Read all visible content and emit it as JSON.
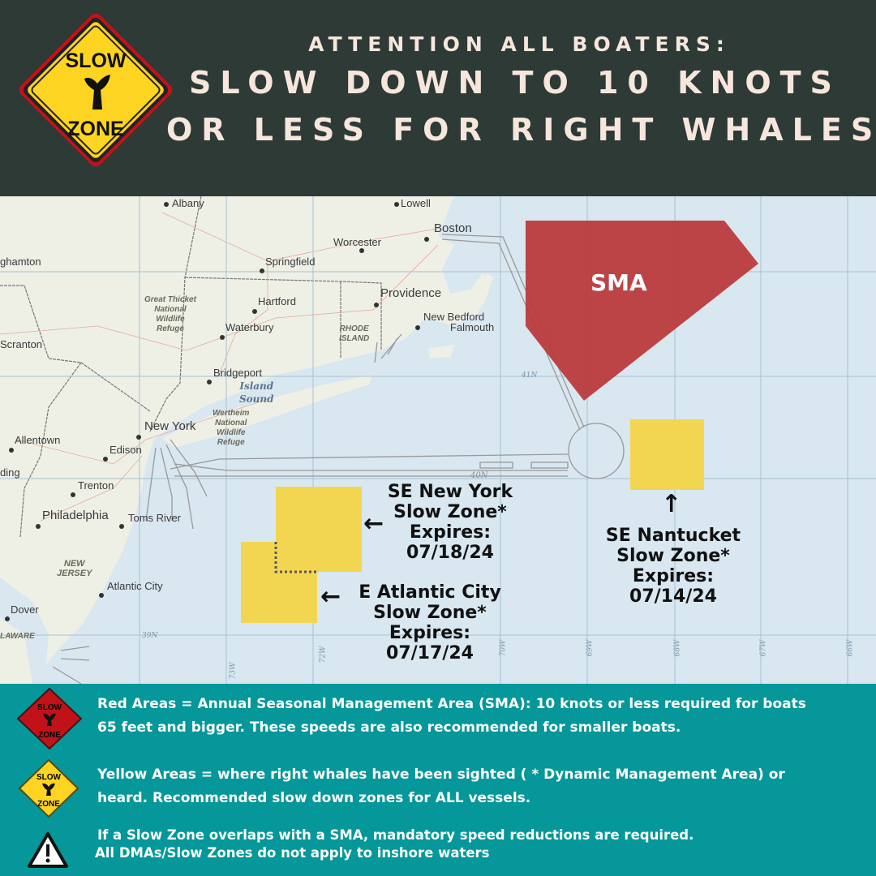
{
  "header": {
    "line1": "ATTENTION ALL BOATERS:",
    "line2": "SLOW DOWN TO 10 KNOTS",
    "line3": "OR LESS FOR RIGHT WHALES",
    "logo_text_top": "SLOW",
    "logo_text_bottom": "ZONE"
  },
  "colors": {
    "header_bg": "#2d3a35",
    "header_text": "#f7e6dc",
    "sma": "#bb3b3c",
    "slow_zone": "#f2d652",
    "legend_bg": "#05979a",
    "water": "#d8e7f0",
    "land": "#eef0e6"
  },
  "map": {
    "cities": [
      {
        "name": "Albany"
      },
      {
        "name": "Lowell"
      },
      {
        "name": "Boston"
      },
      {
        "name": "Worcester"
      },
      {
        "name": "Springfield"
      },
      {
        "name": "ghamton"
      },
      {
        "name": "Providence"
      },
      {
        "name": "Hartford"
      },
      {
        "name": "Waterbury"
      },
      {
        "name": "New Bedford"
      },
      {
        "name": "Falmouth"
      },
      {
        "name": "Scranton"
      },
      {
        "name": "Bridgeport"
      },
      {
        "name": "New York"
      },
      {
        "name": "Allentown"
      },
      {
        "name": "Edison"
      },
      {
        "name": "ding"
      },
      {
        "name": "Trenton"
      },
      {
        "name": "Philadelphia"
      },
      {
        "name": "Toms River"
      },
      {
        "name": "Atlantic City"
      },
      {
        "name": "Dover"
      }
    ],
    "regions": {
      "rhode_island": "RHODE\nISLAND",
      "new_jersey": "NEW\nJERSEY",
      "delaware": "LAWARE"
    },
    "parks": {
      "great_thicket": "Great Thicket\nNational\nWildlife\nRefuge",
      "wertheim": "Wertheim\nNational\nWildlife\nRefuge"
    },
    "water": {
      "island_sound": "Island\nSound"
    },
    "grid_labels": {
      "lat_41": "41N",
      "lat_40": "40N",
      "lat_39": "39N",
      "lon_73": "73W",
      "lon_72": "72W",
      "lon_70": "70W",
      "lon_69": "69W",
      "lon_68": "68W",
      "lon_67": "67W",
      "lon_66": "66W"
    },
    "sma_label": "SMA",
    "zones": [
      {
        "name": "SE New York",
        "line2": "Slow Zone*",
        "line3": "Expires:",
        "date": "07/18/24",
        "arrow": "←"
      },
      {
        "name": "E Atlantic City",
        "line2": "Slow Zone*",
        "line3": "Expires:",
        "date": "07/17/24",
        "arrow": "←"
      },
      {
        "name": "SE Nantucket",
        "line2": "Slow Zone*",
        "line3": "Expires:",
        "date": "07/14/24",
        "arrow": "↑"
      }
    ]
  },
  "legend": [
    {
      "icon": "red-slow-zone-sign",
      "line1": "Red Areas = Annual Seasonal Management Area (SMA):  10 knots or less required for boats",
      "line2": "65 feet and bigger. These speeds are also recommended for smaller boats."
    },
    {
      "icon": "yellow-slow-zone-sign",
      "line1": "Yellow Areas =  where right whales have been sighted ( * Dynamic Management Area) or",
      "line2": "heard. Recommended slow down zones for ALL vessels."
    },
    {
      "icon": "warning-icon",
      "line1": "If a Slow Zone overlaps with a SMA, mandatory speed reductions are required.",
      "line2": "All DMAs/Slow Zones do not apply to inshore waters"
    }
  ]
}
